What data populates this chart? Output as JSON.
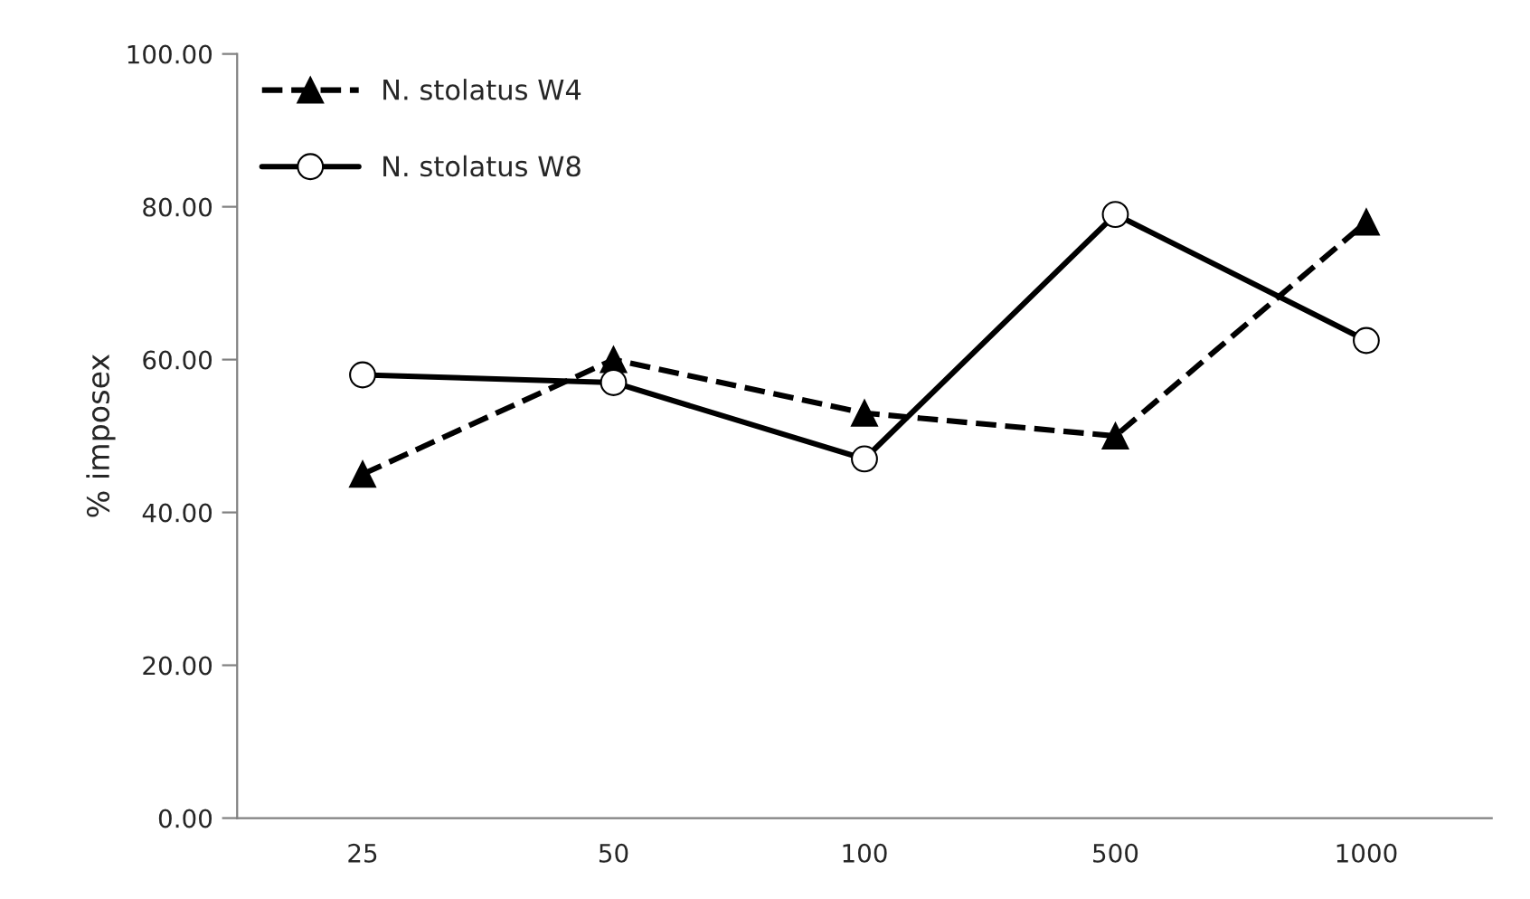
{
  "chart_data": {
    "type": "line",
    "ylabel": "% imposex",
    "categories": [
      "25",
      "50",
      "100",
      "500",
      "1000"
    ],
    "series": [
      {
        "name": "N. stolatus W4",
        "color": "#000000",
        "values": [
          45,
          60,
          53,
          50,
          78
        ],
        "marker": "triangle",
        "line_style": "dashed"
      },
      {
        "name": "N. stolatus W8",
        "color": "#000000",
        "values": [
          58,
          57,
          47,
          79,
          62.5
        ],
        "marker": "circle",
        "line_style": "solid"
      }
    ],
    "ylim": [
      0,
      100
    ],
    "yticks": [
      {
        "value": 0,
        "label": "0.00"
      },
      {
        "value": 20,
        "label": "20.00"
      },
      {
        "value": 40,
        "label": "40.00"
      },
      {
        "value": 60,
        "label": "60.00"
      },
      {
        "value": 80,
        "label": "80.00"
      },
      {
        "value": 100,
        "label": "100.00"
      }
    ],
    "grid": false,
    "legend": "top left"
  }
}
